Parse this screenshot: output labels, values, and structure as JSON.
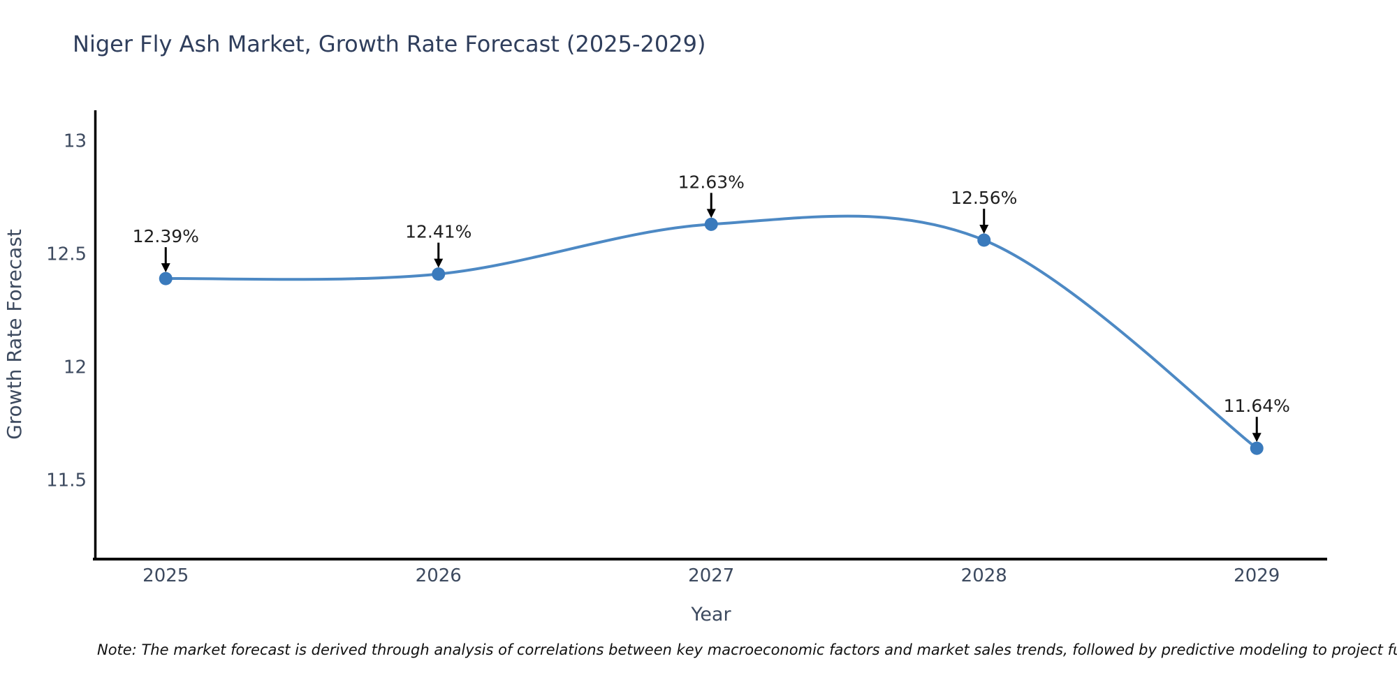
{
  "page": {
    "note": "Note: The market forecast is derived through analysis of correlations between key macroeconomic factors and market sales trends, followed by predictive modeling to project future sal"
  },
  "chart_data": {
    "type": "line",
    "title": "Niger Fly Ash Market, Growth Rate Forecast (2025-2029)",
    "xlabel": "Year",
    "ylabel": "Growth Rate Forecast",
    "x": [
      2025,
      2026,
      2027,
      2028,
      2029
    ],
    "xtick_labels": [
      "2025",
      "2026",
      "2027",
      "2028",
      "2029"
    ],
    "values": [
      12.39,
      12.41,
      12.63,
      12.56,
      11.64
    ],
    "point_labels": [
      "12.39%",
      "12.41%",
      "12.63%",
      "12.56%",
      "11.64%"
    ],
    "yticks": [
      13,
      12.5,
      12,
      11.5
    ],
    "ytick_labels": [
      "13",
      "12.5",
      "12",
      "11.5"
    ],
    "ylim": [
      11.15,
      13.134
    ],
    "xlim": [
      2024.742,
      2029.258
    ],
    "grid": false,
    "legend": "none",
    "curve": "smooth-spline",
    "marker": "circle",
    "annotation_arrows": "down",
    "colors": {
      "line": "#4d89c4",
      "marker": "#3a7abc",
      "axis": "#000000",
      "title_text": "#2f3e5c",
      "axis_text": "#3d4a5f",
      "annotation_text": "#1f1f1f",
      "note_text": "#111111",
      "background": "#ffffff"
    }
  }
}
